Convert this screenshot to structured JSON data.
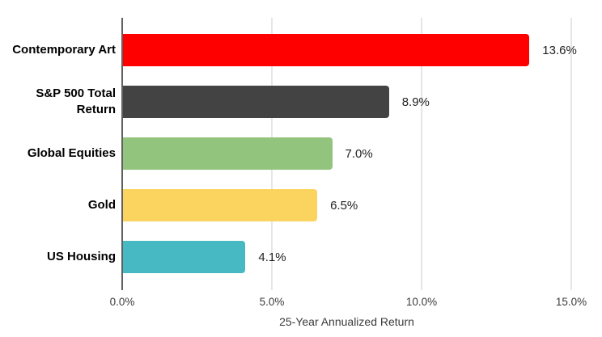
{
  "chart_data": {
    "type": "bar",
    "orientation": "horizontal",
    "title": "",
    "xlabel": "25-Year Annualized Return",
    "ylabel": "",
    "xlim": [
      0,
      15
    ],
    "grid": true,
    "legend": "none",
    "categories": [
      "Contemporary Art",
      "S&P 500 Total Return",
      "Global Equities",
      "Gold",
      "US Housing"
    ],
    "values": [
      13.6,
      8.9,
      7.0,
      6.5,
      4.1
    ],
    "rows": [
      {
        "category": "Contemporary Art",
        "value": 13.6,
        "label": "13.6%",
        "color": "#ff0000"
      },
      {
        "category": "S&P 500 Total Return",
        "value": 8.9,
        "label": "8.9%",
        "color": "#434343"
      },
      {
        "category": "Global Equities",
        "value": 7.0,
        "label": "7.0%",
        "color": "#93c47d"
      },
      {
        "category": "Gold",
        "value": 6.5,
        "label": "6.5%",
        "color": "#fad45e"
      },
      {
        "category": "US Housing",
        "value": 4.1,
        "label": "4.1%",
        "color": "#47b9c3"
      }
    ],
    "ticks": [
      {
        "label": "0.0%",
        "value": 0
      },
      {
        "label": "5.0%",
        "value": 5
      },
      {
        "label": "10.0%",
        "value": 10
      },
      {
        "label": "15.0%",
        "value": 15
      }
    ]
  },
  "colors": {
    "background": "#ffffff",
    "gridline": "#cccccc",
    "axis_line": "#616161",
    "category_text": "#000000",
    "value_text": "#212121",
    "tick_text": "#3b3b3b"
  }
}
